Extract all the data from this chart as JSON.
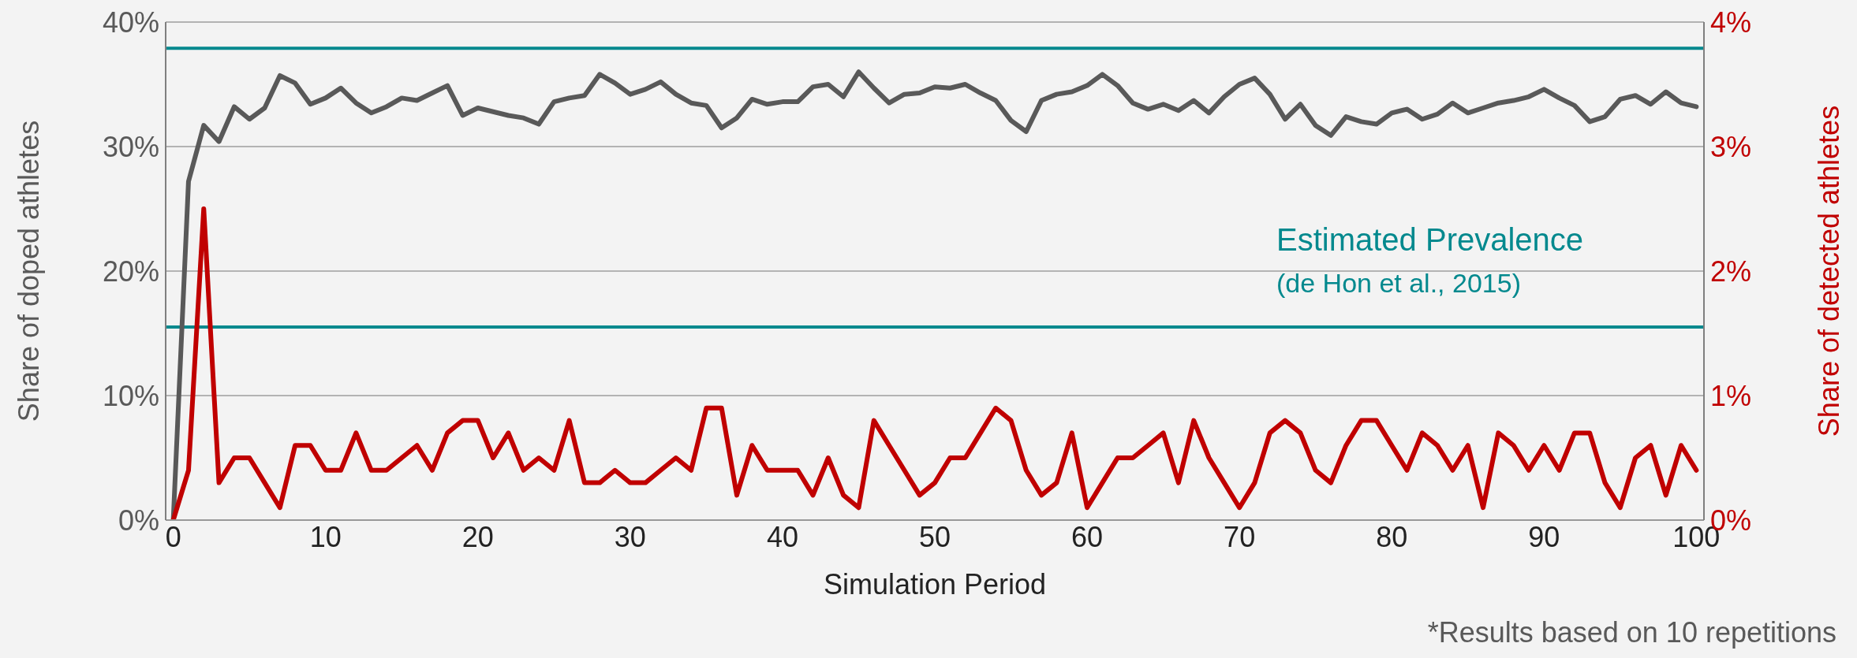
{
  "chart_data": {
    "type": "line",
    "xlabel": "Simulation Period",
    "ylabel": "Share of doped athletes",
    "y2label": "Share of detected athletes",
    "x": [
      0,
      1,
      2,
      3,
      4,
      5,
      6,
      7,
      8,
      9,
      10,
      11,
      12,
      13,
      14,
      15,
      16,
      17,
      18,
      19,
      20,
      21,
      22,
      23,
      24,
      25,
      26,
      27,
      28,
      29,
      30,
      31,
      32,
      33,
      34,
      35,
      36,
      37,
      38,
      39,
      40,
      41,
      42,
      43,
      44,
      45,
      46,
      47,
      48,
      49,
      50,
      51,
      52,
      53,
      54,
      55,
      56,
      57,
      58,
      59,
      60,
      61,
      62,
      63,
      64,
      65,
      66,
      67,
      68,
      69,
      70,
      71,
      72,
      73,
      74,
      75,
      76,
      77,
      78,
      79,
      80,
      81,
      82,
      83,
      84,
      85,
      86,
      87,
      88,
      89,
      90,
      91,
      92,
      93,
      94,
      95,
      96,
      97,
      98,
      99,
      100
    ],
    "series": [
      {
        "color": "#595959",
        "values": [
          0,
          27.2,
          31.7,
          30.4,
          33.2,
          32.2,
          33.1,
          35.7,
          35.1,
          33.4,
          33.9,
          34.7,
          33.5,
          32.7,
          33.2,
          33.9,
          33.7,
          34.3,
          34.9,
          32.5,
          33.1,
          32.8,
          32.5,
          32.3,
          31.8,
          33.6,
          33.9,
          34.1,
          35.8,
          35.1,
          34.2,
          34.6,
          35.2,
          34.2,
          33.5,
          33.3,
          31.5,
          32.3,
          33.8,
          33.4,
          33.6,
          33.6,
          34.8,
          35.0,
          34.0,
          36.0,
          34.7,
          33.5,
          34.2,
          34.3,
          34.8,
          34.7,
          35.0,
          34.3,
          33.7,
          32.1,
          31.2,
          33.7,
          34.2,
          34.4,
          34.9,
          35.8,
          34.9,
          33.5,
          33.0,
          33.4,
          32.9,
          33.7,
          32.7,
          34.0,
          35.0,
          35.5,
          34.2,
          32.2,
          33.4,
          31.7,
          30.9,
          32.4,
          32.0,
          31.8,
          32.7,
          33.0,
          32.2,
          32.6,
          33.5,
          32.7,
          33.1,
          33.5,
          33.7,
          34.0,
          34.6,
          33.9,
          33.3,
          32.0,
          32.4,
          33.8,
          34.1,
          33.4,
          34.4,
          33.5,
          33.2
        ]
      },
      {
        "color": "#c00000",
        "axis": "y2",
        "values": [
          0,
          0.4,
          2.5,
          0.3,
          0.5,
          0.5,
          0.3,
          0.1,
          0.6,
          0.6,
          0.4,
          0.4,
          0.7,
          0.4,
          0.4,
          0.5,
          0.6,
          0.4,
          0.7,
          0.8,
          0.8,
          0.5,
          0.7,
          0.4,
          0.5,
          0.4,
          0.8,
          0.3,
          0.3,
          0.4,
          0.3,
          0.3,
          0.4,
          0.5,
          0.4,
          0.9,
          0.9,
          0.2,
          0.6,
          0.4,
          0.4,
          0.4,
          0.2,
          0.5,
          0.2,
          0.1,
          0.8,
          0.6,
          0.4,
          0.2,
          0.3,
          0.5,
          0.5,
          0.7,
          0.9,
          0.8,
          0.4,
          0.2,
          0.3,
          0.7,
          0.1,
          0.3,
          0.5,
          0.5,
          0.6,
          0.7,
          0.3,
          0.8,
          0.5,
          0.3,
          0.1,
          0.3,
          0.7,
          0.8,
          0.7,
          0.4,
          0.3,
          0.6,
          0.8,
          0.8,
          0.6,
          0.4,
          0.7,
          0.6,
          0.4,
          0.6,
          0.1,
          0.7,
          0.6,
          0.4,
          0.6,
          0.4,
          0.7,
          0.7,
          0.3,
          0.1,
          0.5,
          0.6,
          0.2,
          0.6,
          0.4
        ]
      }
    ],
    "xlim": [
      -0.5,
      100.5
    ],
    "xticks": [
      0,
      10,
      20,
      30,
      40,
      50,
      60,
      70,
      80,
      90,
      100
    ],
    "ylim": [
      0,
      40
    ],
    "yticks": [
      {
        "value": 0,
        "label": "0%"
      },
      {
        "value": 10,
        "label": "10%"
      },
      {
        "value": 20,
        "label": "20%"
      },
      {
        "value": 30,
        "label": "30%"
      },
      {
        "value": 40,
        "label": "40%"
      }
    ],
    "y2lim": [
      0,
      4
    ],
    "y2ticks": [
      {
        "value": 0,
        "label": "0%"
      },
      {
        "value": 1,
        "label": "1%"
      },
      {
        "value": 2,
        "label": "2%"
      },
      {
        "value": 3,
        "label": "3%"
      },
      {
        "value": 4,
        "label": "4%"
      }
    ],
    "ref_lines": [
      {
        "axis": "y",
        "value": 37.9,
        "color": "#03898e"
      },
      {
        "axis": "y",
        "value": 15.5,
        "color": "#03898e"
      }
    ],
    "annotations": [
      "Estimated Prevalence",
      "(de Hon et al., 2015)",
      "*Results based on 10 repetitions"
    ],
    "grid": "y",
    "marker": "none",
    "line_style": "solid"
  }
}
